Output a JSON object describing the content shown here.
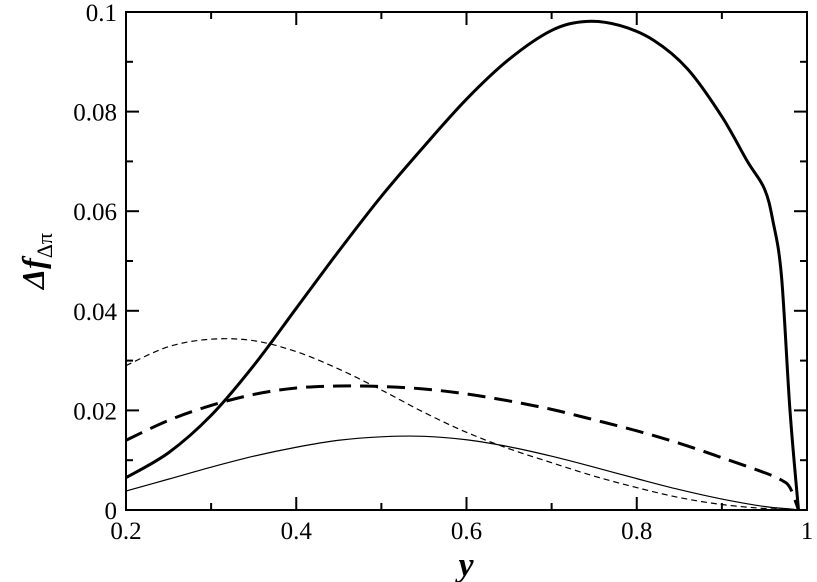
{
  "chart_data": {
    "type": "line",
    "title": "",
    "xlabel": "y",
    "ylabel": {
      "symbol": "Δf",
      "subscript": "Δπ"
    },
    "xlim": [
      0.2,
      1.0
    ],
    "ylim": [
      0.0,
      0.1
    ],
    "xticks": [
      "0.2",
      "0.4",
      "0.6",
      "0.8",
      "1"
    ],
    "yticks": [
      "0",
      "0.02",
      "0.04",
      "0.06",
      "0.08",
      "0.1"
    ],
    "grid": false,
    "legend": "none",
    "series": [
      {
        "style": "thick-solid",
        "color": "#000000",
        "x": [
          0.2,
          0.25,
          0.3,
          0.35,
          0.4,
          0.45,
          0.5,
          0.55,
          0.6,
          0.65,
          0.7,
          0.74,
          0.78,
          0.82,
          0.86,
          0.9,
          0.93,
          0.95,
          0.96,
          0.97,
          0.98,
          0.99
        ],
        "y": [
          0.0065,
          0.0115,
          0.019,
          0.029,
          0.0405,
          0.052,
          0.063,
          0.073,
          0.0825,
          0.0905,
          0.0963,
          0.0981,
          0.0973,
          0.0943,
          0.0885,
          0.079,
          0.07,
          0.0645,
          0.058,
          0.047,
          0.02,
          0.0
        ]
      },
      {
        "style": "thick-dashed",
        "color": "#000000",
        "x": [
          0.2,
          0.25,
          0.3,
          0.35,
          0.4,
          0.45,
          0.5,
          0.55,
          0.6,
          0.65,
          0.7,
          0.75,
          0.8,
          0.85,
          0.9,
          0.95,
          0.97,
          0.98,
          0.99
        ],
        "y": [
          0.014,
          0.018,
          0.021,
          0.0232,
          0.0245,
          0.0249,
          0.0248,
          0.0243,
          0.0233,
          0.0219,
          0.0202,
          0.0181,
          0.0159,
          0.0134,
          0.0105,
          0.0075,
          0.006,
          0.0045,
          0.0
        ]
      },
      {
        "style": "thin-solid",
        "color": "#000000",
        "x": [
          0.2,
          0.25,
          0.3,
          0.35,
          0.4,
          0.45,
          0.5,
          0.55,
          0.6,
          0.65,
          0.7,
          0.75,
          0.8,
          0.85,
          0.9,
          0.95,
          0.98,
          0.99
        ],
        "y": [
          0.0038,
          0.0062,
          0.0086,
          0.0108,
          0.0126,
          0.014,
          0.0147,
          0.0148,
          0.0141,
          0.0127,
          0.0108,
          0.0086,
          0.0063,
          0.0041,
          0.0022,
          0.0007,
          0.0002,
          0.0
        ]
      },
      {
        "style": "thin-dashed",
        "color": "#000000",
        "x": [
          0.2,
          0.25,
          0.3,
          0.35,
          0.4,
          0.45,
          0.5,
          0.55,
          0.6,
          0.65,
          0.7,
          0.75,
          0.8,
          0.85,
          0.9,
          0.95,
          0.98,
          0.99
        ],
        "y": [
          0.029,
          0.0328,
          0.0343,
          0.034,
          0.0318,
          0.0283,
          0.0241,
          0.0196,
          0.0156,
          0.0123,
          0.0095,
          0.0068,
          0.0045,
          0.0025,
          0.0011,
          0.0003,
          0.0001,
          0.0
        ]
      }
    ]
  }
}
